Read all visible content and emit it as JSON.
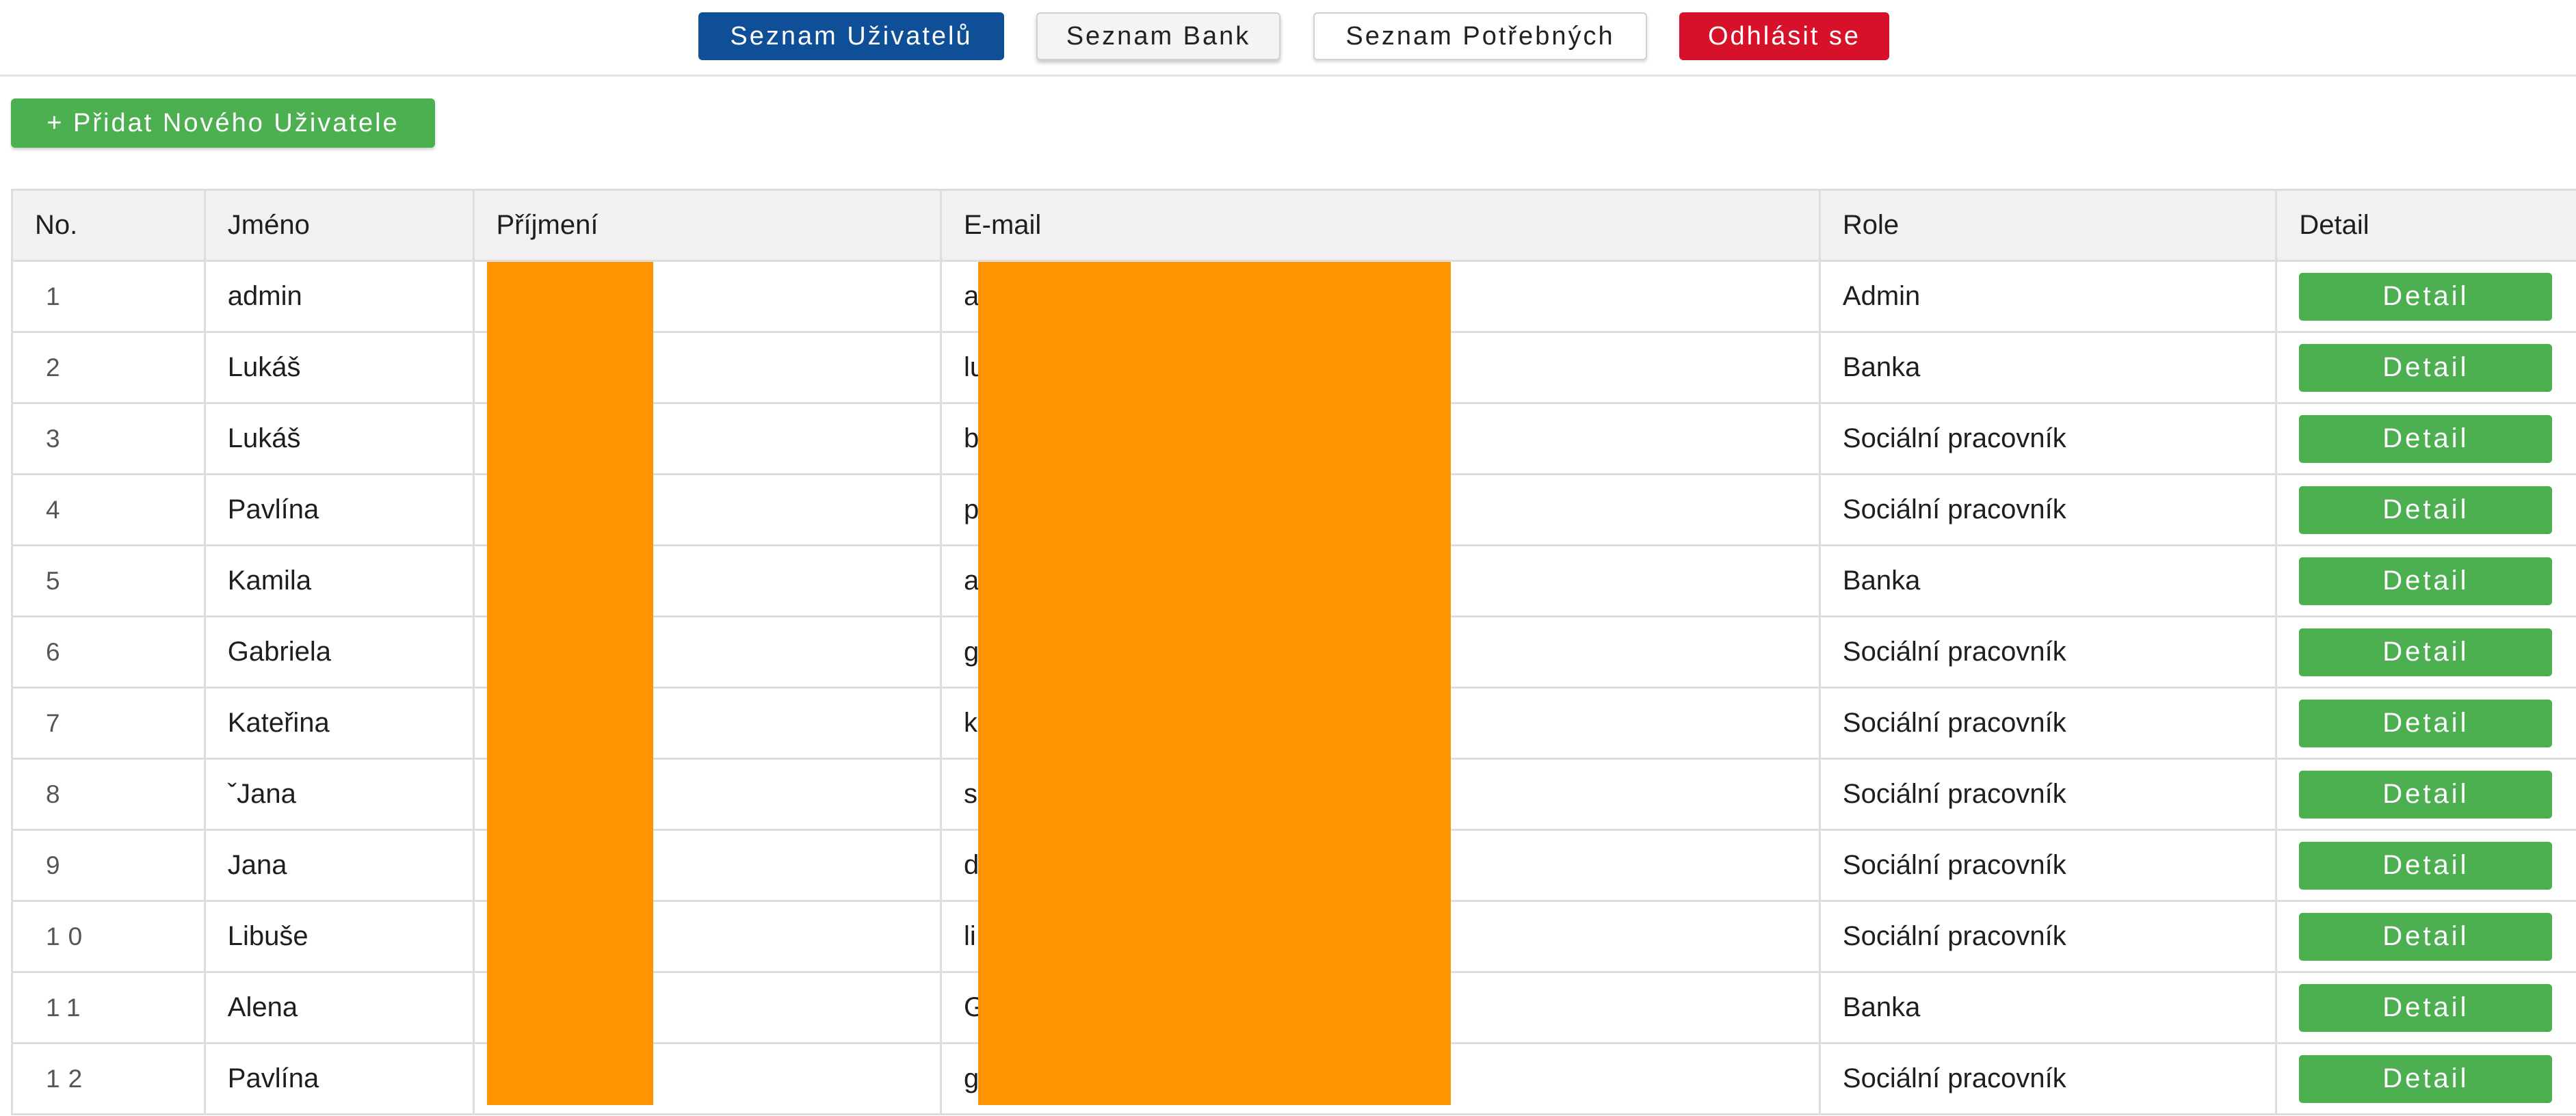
{
  "nav": {
    "users": "Seznam Uživatelů",
    "banks": "Seznam Bank",
    "needy": "Seznam Potřebných",
    "logout": "Odhlásit se"
  },
  "add_user_label": "+ Přidat Nového Uživatele",
  "table": {
    "headers": {
      "no": "No.",
      "name": "Jméno",
      "surname": "Příjmení",
      "email": "E-mail",
      "role": "Role",
      "detail": "Detail"
    },
    "rows": [
      {
        "no": "1",
        "name": "admin",
        "email": "a",
        "role": "Admin",
        "detail": "Detail"
      },
      {
        "no": "2",
        "name": "Lukáš",
        "email": "lu",
        "role": "Banka",
        "detail": "Detail"
      },
      {
        "no": "3",
        "name": "Lukáš",
        "email": "b",
        "role": "Sociální pracovník",
        "detail": "Detail"
      },
      {
        "no": "4",
        "name": "Pavlína",
        "email": "p",
        "role": "Sociální pracovník",
        "detail": "Detail"
      },
      {
        "no": "5",
        "name": "Kamila",
        "email": "a",
        "role": "Banka",
        "detail": "Detail"
      },
      {
        "no": "6",
        "name": "Gabriela",
        "email": "g",
        "role": "Sociální pracovník",
        "detail": "Detail"
      },
      {
        "no": "7",
        "name": "Kateřina",
        "email": "k",
        "role": "Sociální pracovník",
        "detail": "Detail"
      },
      {
        "no": "8",
        "name": "ˇJana",
        "email": "s",
        "role": "Sociální pracovník",
        "detail": "Detail"
      },
      {
        "no": "9",
        "name": "Jana",
        "email": "d",
        "role": "Sociální pracovník",
        "detail": "Detail"
      },
      {
        "no": "10",
        "name": "Libuše",
        "email": "li",
        "role": "Sociální pracovník",
        "detail": "Detail"
      },
      {
        "no": "11",
        "name": "Alena",
        "email": "G",
        "role": "Banka",
        "detail": "Detail"
      },
      {
        "no": "12",
        "name": "Pavlína",
        "email": "g",
        "role": "Sociální pracovník",
        "detail": "Detail"
      }
    ]
  },
  "colors": {
    "primary": "#0e4f98",
    "danger": "#d8112b",
    "success": "#4caf50",
    "redaction": "#ff9300"
  }
}
